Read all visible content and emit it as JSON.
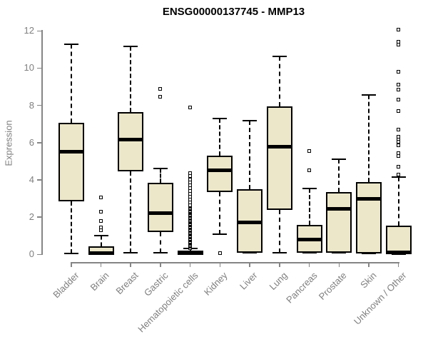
{
  "title": "ENSG00000137745 - MMP13",
  "colors": {
    "box_fill": "#ECE7C9",
    "box_stroke": "#000000",
    "axis": "#858585",
    "tick_text": "#7f7f7f",
    "title_text": "#000000",
    "background": "#ffffff"
  },
  "chart_data": {
    "type": "boxplot",
    "title": "ENSG00000137745 - MMP13",
    "xlabel": "",
    "ylabel": "Expression",
    "ylim": [
      0,
      12
    ],
    "yticks": [
      0,
      2,
      4,
      6,
      8,
      10,
      12
    ],
    "grid": false,
    "legend": "none",
    "categories": [
      "Bladder",
      "Brain",
      "Breast",
      "Gastric",
      "Hematopoietic cells",
      "Kidney",
      "Liver",
      "Lung",
      "Pancreas",
      "Prostate",
      "Skin",
      "Unknown / Other"
    ],
    "series": [
      {
        "category": "Bladder",
        "whisker_low": 0.05,
        "q1": 2.85,
        "median": 5.5,
        "q3": 7.05,
        "whisker_high": 11.3,
        "outliers": []
      },
      {
        "category": "Brain",
        "whisker_low": 0.0,
        "q1": 0.0,
        "median": 0.07,
        "q3": 0.45,
        "whisker_high": 1.0,
        "outliers": [
          1.3,
          1.45,
          1.8,
          2.3,
          3.05
        ]
      },
      {
        "category": "Breast",
        "whisker_low": 0.1,
        "q1": 4.45,
        "median": 6.15,
        "q3": 7.65,
        "whisker_high": 11.15,
        "outliers": []
      },
      {
        "category": "Gastric",
        "whisker_low": 0.1,
        "q1": 1.2,
        "median": 2.2,
        "q3": 3.85,
        "whisker_high": 4.6,
        "outliers": [
          8.45,
          8.9
        ]
      },
      {
        "category": "Hematopoietic cells",
        "whisker_low": 0.0,
        "q1": 0.0,
        "median": 0.06,
        "q3": 0.2,
        "whisker_high": 0.3,
        "outliers": [
          2.8,
          2.95,
          3.1,
          3.25,
          3.4,
          3.55,
          3.7,
          3.85,
          4.0,
          4.2,
          4.35,
          7.9
        ],
        "dense_outliers": {
          "from": 0.35,
          "to": 2.65,
          "step": 0.05
        }
      },
      {
        "category": "Kidney",
        "whisker_low": 1.1,
        "q1": 3.35,
        "median": 4.5,
        "q3": 5.3,
        "whisker_high": 7.3,
        "outliers": [
          0.05
        ]
      },
      {
        "category": "Liver",
        "whisker_low": 0.1,
        "q1": 0.1,
        "median": 1.7,
        "q3": 3.5,
        "whisker_high": 7.2,
        "outliers": []
      },
      {
        "category": "Lung",
        "whisker_low": 0.1,
        "q1": 2.4,
        "median": 5.8,
        "q3": 7.95,
        "whisker_high": 10.65,
        "outliers": []
      },
      {
        "category": "Pancreas",
        "whisker_low": 0.1,
        "q1": 0.1,
        "median": 0.8,
        "q3": 1.6,
        "whisker_high": 3.55,
        "outliers": [
          4.5,
          5.55
        ]
      },
      {
        "category": "Prostate",
        "whisker_low": 0.1,
        "q1": 0.1,
        "median": 2.45,
        "q3": 3.35,
        "whisker_high": 5.1,
        "outliers": []
      },
      {
        "category": "Skin",
        "whisker_low": 0.05,
        "q1": 0.05,
        "median": 3.0,
        "q3": 3.9,
        "whisker_high": 8.55,
        "outliers": []
      },
      {
        "category": "Unknown / Other",
        "whisker_low": 0.0,
        "q1": 0.0,
        "median": 0.1,
        "q3": 1.55,
        "whisker_high": 4.15,
        "outliers": [
          4.3,
          4.7,
          5.3,
          5.45,
          5.85,
          6.05,
          6.2,
          6.3,
          6.7,
          7.7,
          8.3,
          8.85,
          9.1,
          9.8,
          11.25,
          11.4,
          12.05
        ]
      }
    ]
  }
}
